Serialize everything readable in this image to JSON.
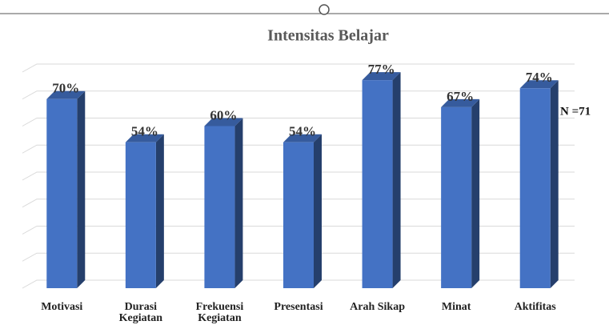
{
  "chart_data": {
    "type": "bar3d",
    "title": "Intensitas Belajar",
    "annotation": "N =71",
    "categories": [
      "Motivasi",
      "Durasi Kegiatan",
      "Frekuensi Kegiatan",
      "Presentasi",
      "Arah Sikap",
      "Minat",
      "Aktifitas"
    ],
    "values": [
      70,
      54,
      60,
      54,
      77,
      67,
      74
    ],
    "value_labels": [
      "70%",
      "54%",
      "60%",
      "54%",
      "77%",
      "67%",
      "74%"
    ],
    "color": "#4472c4",
    "ylim": [
      0,
      80
    ],
    "yticks": [
      0,
      10,
      20,
      30,
      40,
      50,
      60,
      70,
      80
    ],
    "grid": true
  }
}
